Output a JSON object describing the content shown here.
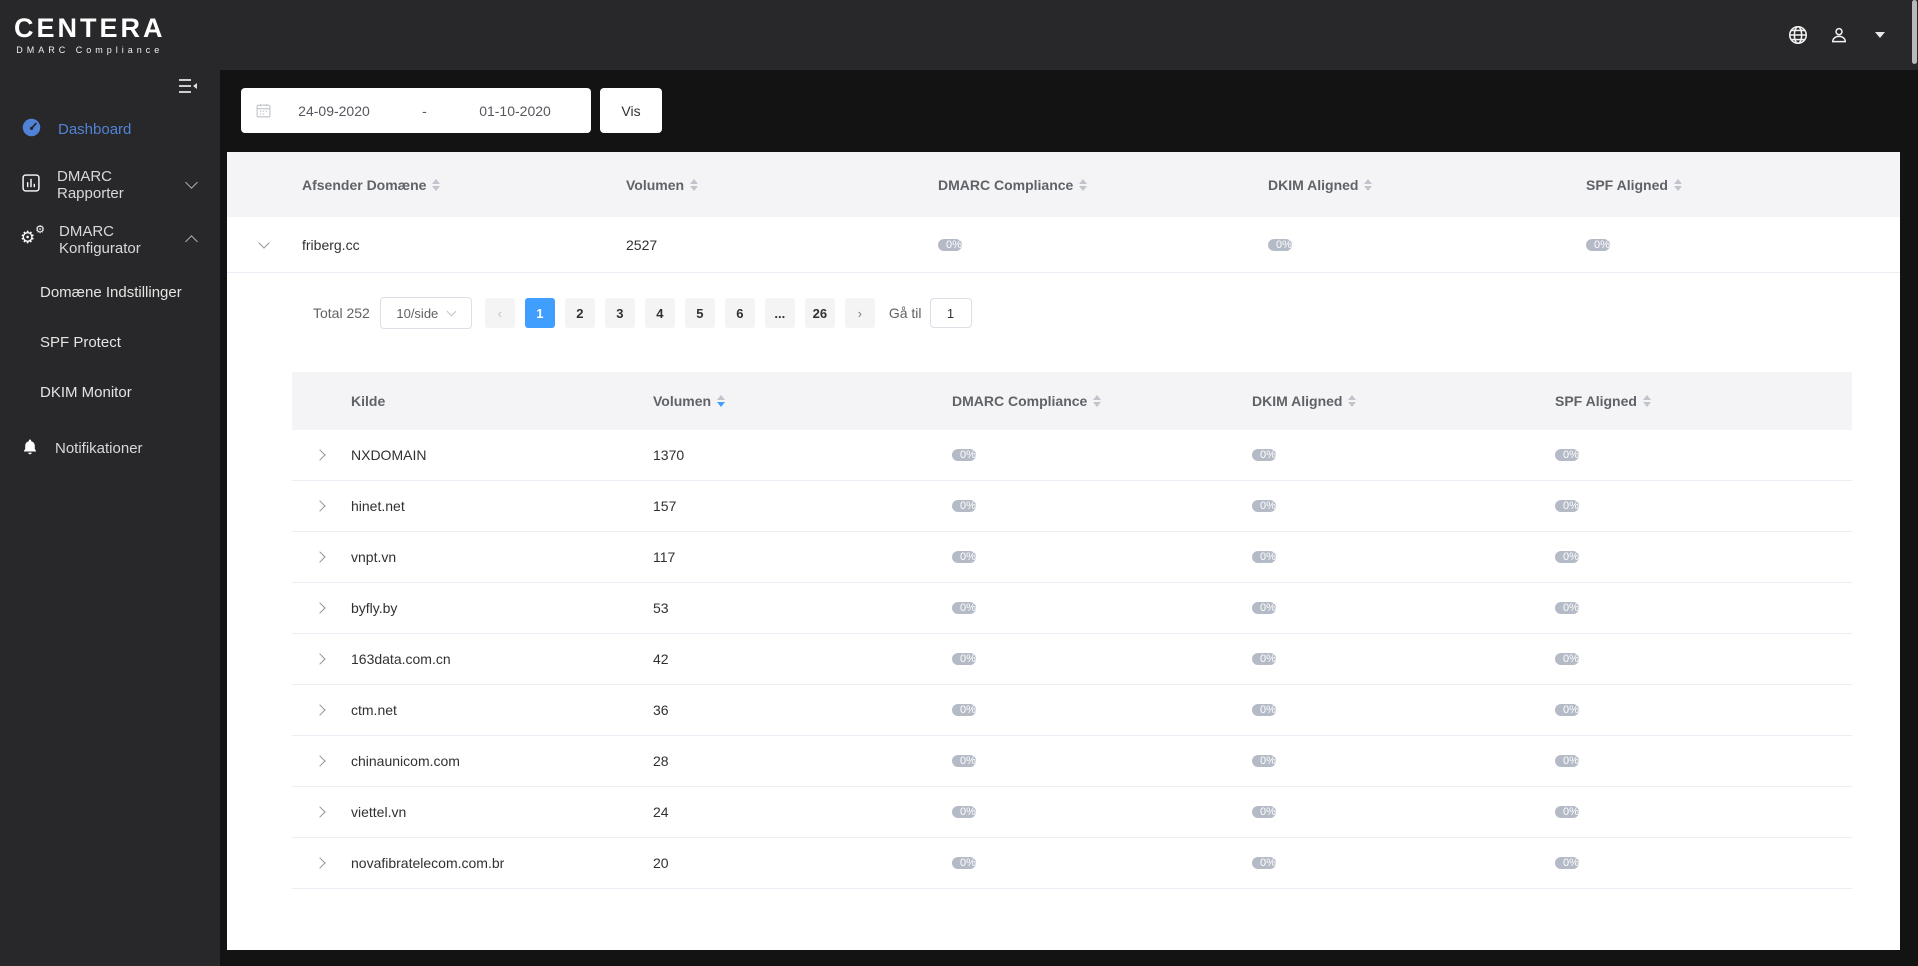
{
  "brand": {
    "name": "CENTERA",
    "tagline": "DMARC Compliance"
  },
  "topbar": {
    "icons": [
      "globe-icon",
      "user-icon",
      "caret-down-icon"
    ]
  },
  "sidebar": {
    "items": [
      {
        "label": "Dashboard",
        "icon": "gauge-icon",
        "active": true
      },
      {
        "label": "DMARC Rapporter",
        "icon": "bar-chart-icon",
        "chevron": "down"
      },
      {
        "label": "DMARC Konfigurator",
        "icon": "gears-icon",
        "chevron": "up",
        "children": [
          "Domæne Indstillinger",
          "SPF Protect",
          "DKIM Monitor"
        ]
      },
      {
        "label": "Notifikationer",
        "icon": "bell-icon"
      }
    ]
  },
  "filter": {
    "date_from": "24-09-2020",
    "separator": "-",
    "date_to": "01-10-2020",
    "apply_label": "Vis"
  },
  "domains_table": {
    "headers": [
      "Afsender Domæne",
      "Volumen",
      "DMARC Compliance",
      "DKIM Aligned",
      "SPF Aligned"
    ],
    "rows": [
      {
        "domain": "friberg.cc",
        "volume": "2527",
        "dmarc": "0%",
        "dkim": "0%",
        "spf": "0%",
        "expanded": true
      }
    ]
  },
  "pagination": {
    "total_label": "Total 252",
    "page_size": "10/side",
    "pages": [
      "1",
      "2",
      "3",
      "4",
      "5",
      "6"
    ],
    "current": "1",
    "ellipsis": "...",
    "last_page": "26",
    "goto_label": "Gå til",
    "goto_value": "1"
  },
  "sources_table": {
    "headers": [
      "Kilde",
      "Volumen",
      "DMARC Compliance",
      "DKIM Aligned",
      "SPF Aligned"
    ],
    "sort": {
      "column": "Volumen",
      "direction": "desc"
    },
    "rows": [
      {
        "name": "NXDOMAIN",
        "volume": "1370",
        "dmarc": "0%",
        "dkim": "0%",
        "spf": "0%"
      },
      {
        "name": "hinet.net",
        "volume": "157",
        "dmarc": "0%",
        "dkim": "0%",
        "spf": "0%"
      },
      {
        "name": "vnpt.vn",
        "volume": "117",
        "dmarc": "0%",
        "dkim": "0%",
        "spf": "0%"
      },
      {
        "name": "byfly.by",
        "volume": "53",
        "dmarc": "0%",
        "dkim": "0%",
        "spf": "0%"
      },
      {
        "name": "163data.com.cn",
        "volume": "42",
        "dmarc": "0%",
        "dkim": "0%",
        "spf": "0%"
      },
      {
        "name": "ctm.net",
        "volume": "36",
        "dmarc": "0%",
        "dkim": "0%",
        "spf": "0%"
      },
      {
        "name": "chinaunicom.com",
        "volume": "28",
        "dmarc": "0%",
        "dkim": "0%",
        "spf": "0%"
      },
      {
        "name": "viettel.vn",
        "volume": "24",
        "dmarc": "0%",
        "dkim": "0%",
        "spf": "0%"
      },
      {
        "name": "novafibratelecom.com.br",
        "volume": "20",
        "dmarc": "0%",
        "dkim": "0%",
        "spf": "0%"
      }
    ]
  },
  "colors": {
    "accent": "#409eff",
    "bar_fill": "#b4bac6",
    "sidebar_active": "#5083d6",
    "header_bg": "#28282a"
  }
}
